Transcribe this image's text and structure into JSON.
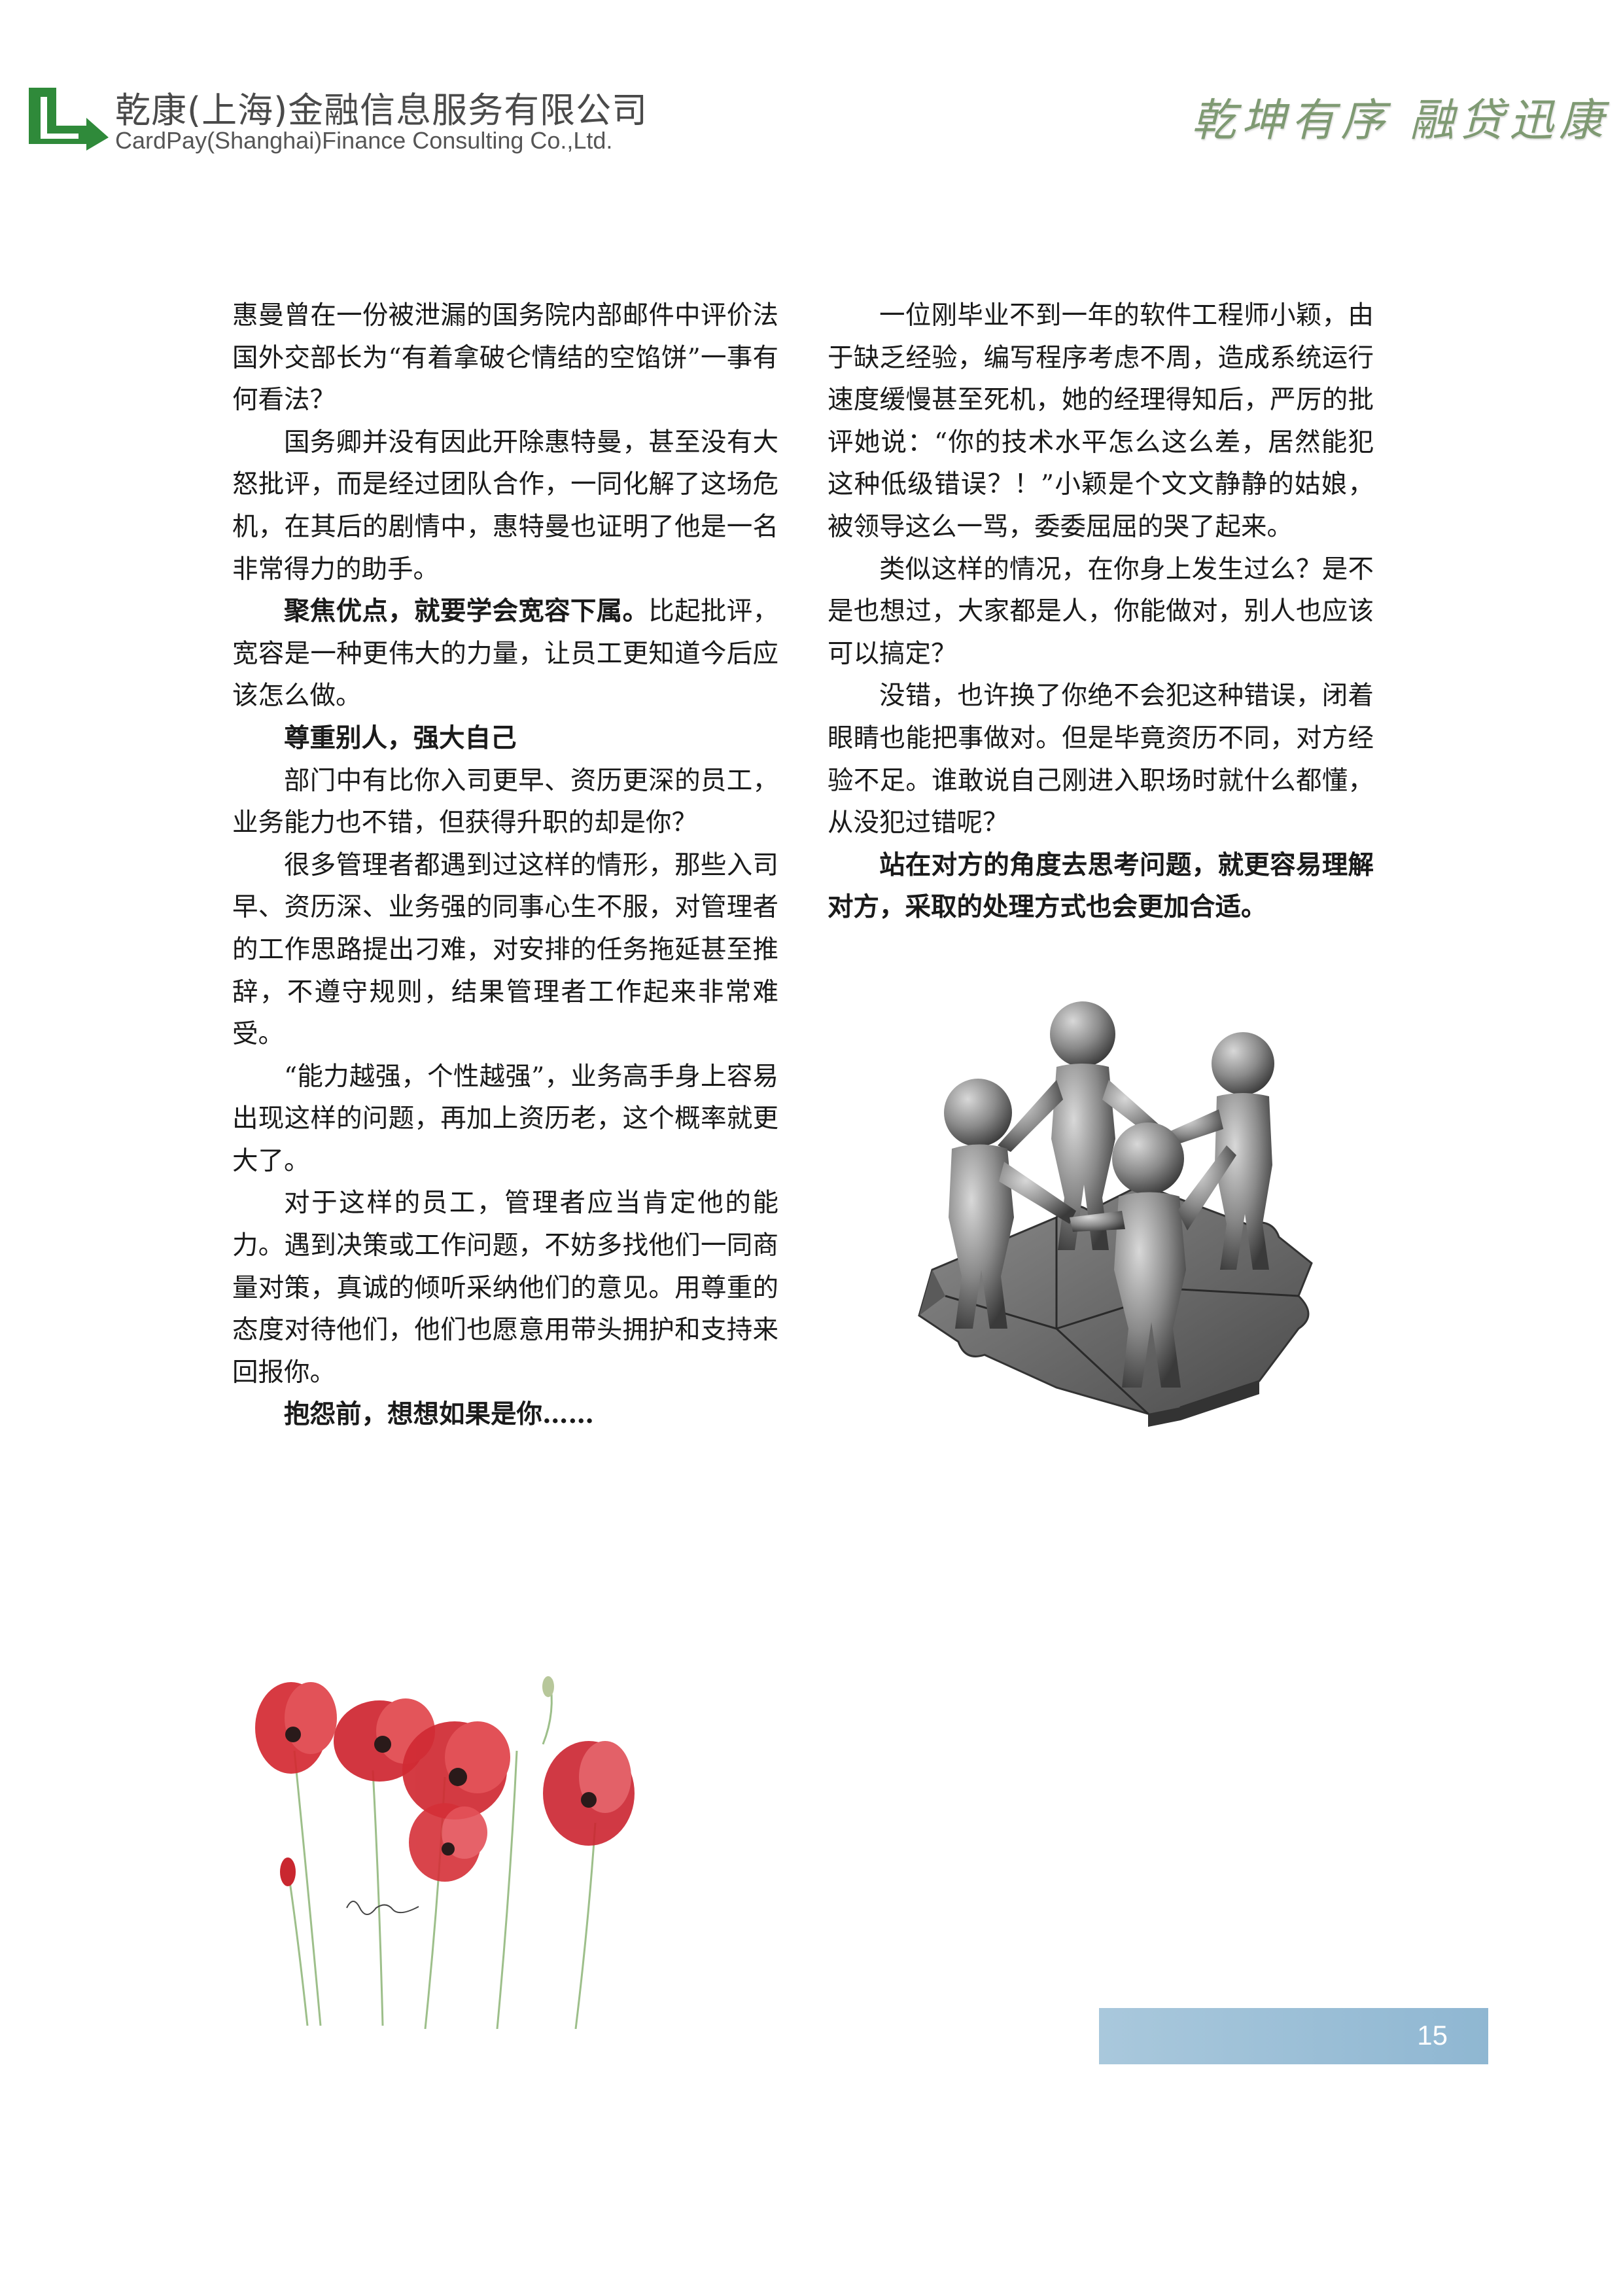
{
  "header": {
    "company_cn": "乾康(上海)金融信息服务有限公司",
    "company_en": "CardPay(Shanghai)Finance Consulting Co.,Ltd.",
    "slogan": "乾坤有序 融贷迅康",
    "logo_color": "#2f8a3a"
  },
  "left_column": {
    "p1": "惠曼曾在一份被泄漏的国务院内部邮件中评价法国外交部长为“有着拿破仑情结的空馅饼”一事有何看法？",
    "p2": "国务卿并没有因此开除惠特曼，甚至没有大怒批评，而是经过团队合作，一同化解了这场危机，在其后的剧情中，惠特曼也证明了他是一名非常得力的助手。",
    "p3_bold": "聚焦优点，就要学会宽容下属。",
    "p3_rest": "比起批评，宽容是一种更伟大的力量，让员工更知道今后应该怎么做。",
    "h1": "尊重别人，强大自己",
    "p4": "部门中有比你入司更早、资历更深的员工，业务能力也不错，但获得升职的却是你？",
    "p5": "很多管理者都遇到过这样的情形，那些入司早、资历深、业务强的同事心生不服，对管理者的工作思路提出刁难，对安排的任务拖延甚至推辞，不遵守规则，结果管理者工作起来非常难受。",
    "p6": "“能力越强，个性越强”，业务高手身上容易出现这样的问题，再加上资历老，这个概率就更大了。",
    "p7": "对于这样的员工，管理者应当肯定他的能力。遇到决策或工作问题，不妨多找他们一同商量对策，真诚的倾听采纳他们的意见。用尊重的态度对待他们，他们也愿意用带头拥护和支持来回报你。",
    "h2": "抱怨前，想想如果是你……"
  },
  "right_column": {
    "p1": "一位刚毕业不到一年的软件工程师小颖，由于缺乏经验，编写程序考虑不周，造成系统运行速度缓慢甚至死机，她的经理得知后，严厉的批评她说：“你的技术水平怎么这么差，居然能犯这种低级错误？！”小颖是个文文静静的姑娘，被领导这么一骂，委委屈屈的哭了起来。",
    "p2": "类似这样的情况，在你身上发生过么？是不是也想过，大家都是人，你能做对，别人也应该可以搞定？",
    "p3": "没错，也许换了你绝不会犯这种错误，闭着眼睛也能把事做对。但是毕竟资历不同，对方经验不足。谁敢说自己刚进入职场时就什么都懂，从没犯过错呢？",
    "p4_bold": "站在对方的角度去思考问题，就更容易理解对方，采取的处理方式也会更加合适。"
  },
  "footer": {
    "page_number": "15"
  }
}
